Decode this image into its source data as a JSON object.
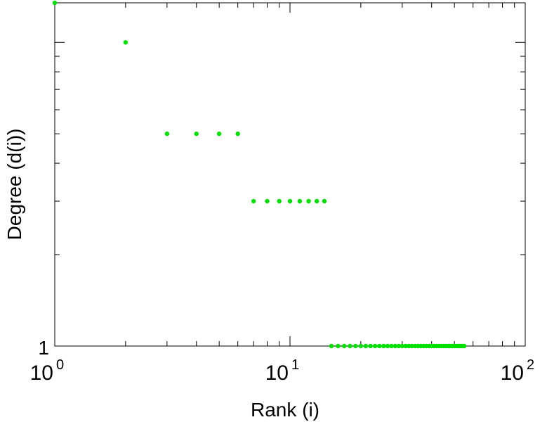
{
  "chart_data": {
    "type": "scatter",
    "xlabel": "Rank (i)",
    "ylabel": "Degree (d(i))",
    "xscale": "log",
    "yscale": "log",
    "xlim": [
      1,
      100
    ],
    "ylim": [
      1,
      13.5
    ],
    "x_tick_labels": [
      {
        "base": "10",
        "exp": "0",
        "value": 1
      },
      {
        "base": "10",
        "exp": "1",
        "value": 10
      },
      {
        "base": "10",
        "exp": "2",
        "value": 100
      }
    ],
    "y_tick_labels": [
      {
        "text": "1",
        "value": 1
      }
    ],
    "point_color": "#00e000",
    "points": [
      {
        "x": 1,
        "y": 13.5
      },
      {
        "x": 2,
        "y": 10
      },
      {
        "x": 3,
        "y": 5
      },
      {
        "x": 4,
        "y": 5
      },
      {
        "x": 5,
        "y": 5
      },
      {
        "x": 6,
        "y": 5
      },
      {
        "x": 7,
        "y": 3
      },
      {
        "x": 8,
        "y": 3
      },
      {
        "x": 9,
        "y": 3
      },
      {
        "x": 10,
        "y": 3
      },
      {
        "x": 11,
        "y": 3
      },
      {
        "x": 12,
        "y": 3
      },
      {
        "x": 13,
        "y": 3
      },
      {
        "x": 14,
        "y": 3
      },
      {
        "x": 15,
        "y": 1
      },
      {
        "x": 16,
        "y": 1
      },
      {
        "x": 17,
        "y": 1
      },
      {
        "x": 18,
        "y": 1
      },
      {
        "x": 19,
        "y": 1
      },
      {
        "x": 20,
        "y": 1
      },
      {
        "x": 21,
        "y": 1
      },
      {
        "x": 22,
        "y": 1
      },
      {
        "x": 23,
        "y": 1
      },
      {
        "x": 24,
        "y": 1
      },
      {
        "x": 25,
        "y": 1
      },
      {
        "x": 26,
        "y": 1
      },
      {
        "x": 27,
        "y": 1
      },
      {
        "x": 28,
        "y": 1
      },
      {
        "x": 29,
        "y": 1
      },
      {
        "x": 30,
        "y": 1
      },
      {
        "x": 31,
        "y": 1
      },
      {
        "x": 32,
        "y": 1
      },
      {
        "x": 33,
        "y": 1
      },
      {
        "x": 34,
        "y": 1
      },
      {
        "x": 35,
        "y": 1
      },
      {
        "x": 36,
        "y": 1
      },
      {
        "x": 37,
        "y": 1
      },
      {
        "x": 38,
        "y": 1
      },
      {
        "x": 39,
        "y": 1
      },
      {
        "x": 40,
        "y": 1
      },
      {
        "x": 41,
        "y": 1
      },
      {
        "x": 42,
        "y": 1
      },
      {
        "x": 43,
        "y": 1
      },
      {
        "x": 44,
        "y": 1
      },
      {
        "x": 45,
        "y": 1
      },
      {
        "x": 46,
        "y": 1
      },
      {
        "x": 47,
        "y": 1
      },
      {
        "x": 48,
        "y": 1
      },
      {
        "x": 49,
        "y": 1
      },
      {
        "x": 50,
        "y": 1
      },
      {
        "x": 51,
        "y": 1
      },
      {
        "x": 52,
        "y": 1
      },
      {
        "x": 53,
        "y": 1
      },
      {
        "x": 54,
        "y": 1
      },
      {
        "x": 55,
        "y": 1
      }
    ]
  }
}
